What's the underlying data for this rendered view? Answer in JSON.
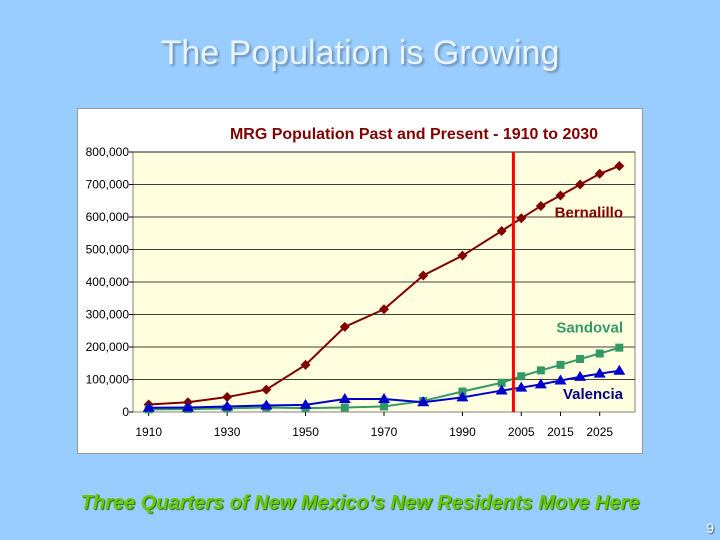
{
  "slide": {
    "title": "The Population is Growing",
    "footer": "Three Quarters of New Mexico’s New Residents Move Here",
    "page_number": "9"
  },
  "chart_data": {
    "type": "line",
    "title": "MRG Population Past and Present - 1910 to 2030",
    "xlabel": "",
    "ylabel": "",
    "x": [
      1910,
      1920,
      1930,
      1940,
      1950,
      1960,
      1970,
      1980,
      1990,
      2000,
      2005,
      2010,
      2015,
      2020,
      2025,
      2030
    ],
    "x_tick_labels": [
      "1910",
      "1930",
      "1950",
      "1970",
      "1990",
      "2005",
      "2015",
      "2025"
    ],
    "x_tick_values": [
      1910,
      1930,
      1950,
      1970,
      1990,
      2005,
      2015,
      2025
    ],
    "ylim": [
      0,
      800000
    ],
    "y_ticks": [
      0,
      100000,
      200000,
      300000,
      400000,
      500000,
      600000,
      700000,
      800000
    ],
    "y_tick_labels": [
      "0",
      "100,000",
      "200,000",
      "300,000",
      "400,000",
      "500,000",
      "600,000",
      "700,000",
      "800,000"
    ],
    "grid": true,
    "current_year_marker": 2003,
    "series": [
      {
        "name": "Bernalillo",
        "color": "#800000",
        "marker": "diamond",
        "values": [
          23000,
          30000,
          46000,
          69000,
          145000,
          262000,
          316000,
          420000,
          481000,
          557000,
          596000,
          634000,
          666000,
          700000,
          733000,
          757000
        ]
      },
      {
        "name": "Sandoval",
        "color": "#339966",
        "marker": "square",
        "values": [
          8000,
          9000,
          11000,
          14000,
          12000,
          14000,
          17000,
          34000,
          63000,
          90000,
          110000,
          128000,
          145000,
          163000,
          180000,
          198000
        ]
      },
      {
        "name": "Valencia",
        "color": "#0000cc",
        "marker": "triangle",
        "values": [
          13000,
          14000,
          17000,
          20000,
          22000,
          40000,
          40000,
          30000,
          45000,
          66000,
          75000,
          85000,
          97000,
          108000,
          118000,
          127000
        ]
      }
    ]
  }
}
